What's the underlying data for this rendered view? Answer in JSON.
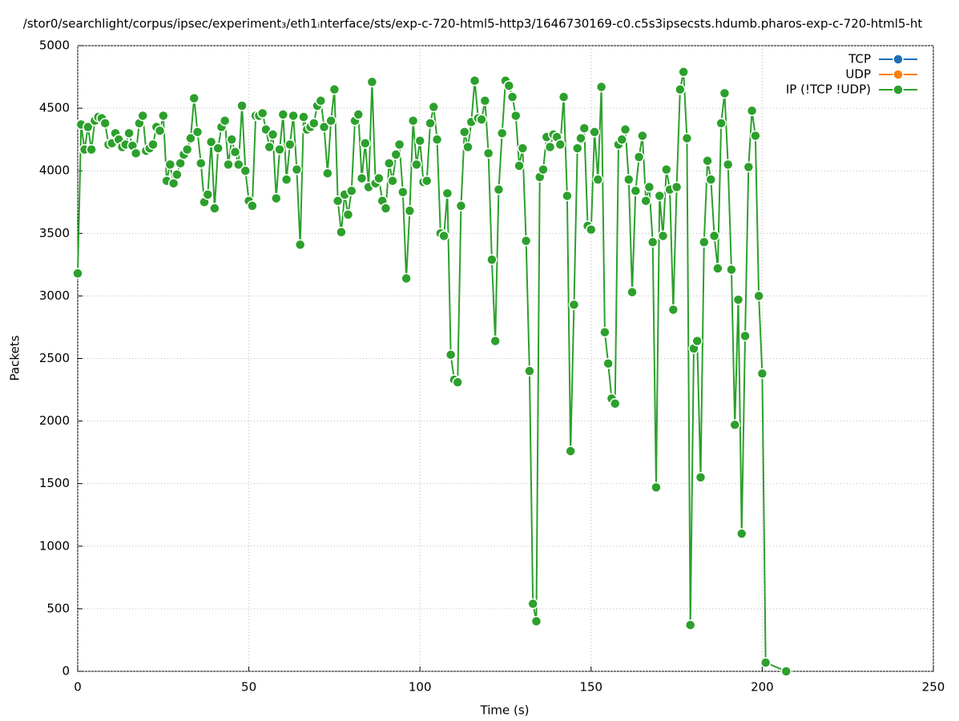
{
  "chart_data": {
    "type": "line",
    "title": "/stor0/searchlight/corpus/ipsec/experiment₃/eth1ᵢnterface/sts/exp-c-720-html5-http3/1646730169-c0.c5s3ipsecsts.hdumb.pharos-exp-c-720-html5-ht",
    "x_label": "Time (s)",
    "y_label": "Packets",
    "xlim": [
      0,
      250
    ],
    "xticks": [
      0,
      50,
      100,
      150,
      200,
      250
    ],
    "ylim": [
      0,
      5000
    ],
    "yticks": [
      0,
      500,
      1000,
      1500,
      2000,
      2500,
      3000,
      3500,
      4000,
      4500,
      5000
    ],
    "grid": true,
    "legend": "top-right",
    "x": [
      0,
      1,
      2,
      3,
      4,
      5,
      6,
      7,
      8,
      9,
      10,
      11,
      12,
      13,
      14,
      15,
      16,
      17,
      18,
      19,
      20,
      21,
      22,
      23,
      24,
      25,
      26,
      27,
      28,
      29,
      30,
      31,
      32,
      33,
      34,
      35,
      36,
      37,
      38,
      39,
      40,
      41,
      42,
      43,
      44,
      45,
      46,
      47,
      48,
      49,
      50,
      51,
      52,
      53,
      54,
      55,
      56,
      57,
      58,
      59,
      60,
      61,
      62,
      63,
      64,
      65,
      66,
      67,
      68,
      69,
      70,
      71,
      72,
      73,
      74,
      75,
      76,
      77,
      78,
      79,
      80,
      81,
      82,
      83,
      84,
      85,
      86,
      87,
      88,
      89,
      90,
      91,
      92,
      93,
      94,
      95,
      96,
      97,
      98,
      99,
      100,
      101,
      102,
      103,
      104,
      105,
      106,
      107,
      108,
      109,
      110,
      111,
      112,
      113,
      114,
      115,
      116,
      117,
      118,
      119,
      120,
      121,
      122,
      123,
      124,
      125,
      126,
      127,
      128,
      129,
      130,
      131,
      132,
      133,
      134,
      135,
      136,
      137,
      138,
      139,
      140,
      141,
      142,
      143,
      144,
      145,
      146,
      147,
      148,
      149,
      150,
      151,
      152,
      153,
      154,
      155,
      156,
      157,
      158,
      159,
      160,
      161,
      162,
      163,
      164,
      165,
      166,
      167,
      168,
      169,
      170,
      171,
      172,
      173,
      174,
      175,
      176,
      177,
      178,
      179,
      180,
      181,
      182,
      183,
      184,
      185,
      186,
      187,
      188,
      189,
      190,
      191,
      192,
      193,
      194,
      195,
      196,
      197,
      198,
      199,
      200,
      201,
      207
    ],
    "series": [
      {
        "name": "TCP",
        "color": "#1f6fb4"
      },
      {
        "name": "UDP",
        "color": "#ff7f0e"
      },
      {
        "name": "IP (!TCP  !UDP)",
        "color": "#2ca02c",
        "values": [
          3180,
          4370,
          4170,
          4350,
          4170,
          4400,
          4430,
          4420,
          4380,
          4210,
          4220,
          4300,
          4250,
          4190,
          4210,
          4300,
          4200,
          4140,
          4380,
          4440,
          4160,
          4180,
          4210,
          4350,
          4320,
          4440,
          3920,
          4050,
          3900,
          3970,
          4060,
          4130,
          4170,
          4260,
          4580,
          4310,
          4060,
          3750,
          3810,
          4230,
          3700,
          4180,
          4350,
          4400,
          4050,
          4250,
          4150,
          4050,
          4520,
          4000,
          3760,
          3720,
          4440,
          4440,
          4460,
          4330,
          4190,
          4290,
          3780,
          4170,
          4450,
          3930,
          4210,
          4440,
          4010,
          3410,
          4430,
          4330,
          4350,
          4380,
          4520,
          4560,
          4350,
          3980,
          4400,
          4650,
          3760,
          3510,
          3810,
          3650,
          3840,
          4400,
          4450,
          3940,
          4220,
          3870,
          4710,
          3900,
          3940,
          3760,
          3700,
          4060,
          3920,
          4130,
          4210,
          3830,
          3140,
          3680,
          4400,
          4050,
          4240,
          3910,
          3920,
          4380,
          4510,
          4250,
          3500,
          3480,
          3820,
          2530,
          2330,
          2310,
          3720,
          4310,
          4190,
          4390,
          4720,
          4420,
          4410,
          4560,
          4140,
          3290,
          2640,
          3850,
          4300,
          4720,
          4680,
          4590,
          4440,
          4040,
          4180,
          3440,
          2400,
          540,
          400,
          3950,
          4010,
          4270,
          4190,
          4290,
          4270,
          4210,
          4590,
          3800,
          1760,
          2930,
          4180,
          4260,
          4340,
          3560,
          3530,
          4310,
          3930,
          4670,
          2710,
          2460,
          2180,
          2140,
          4210,
          4250,
          4330,
          3930,
          3030,
          3840,
          4110,
          4280,
          3760,
          3870,
          3430,
          1470,
          3800,
          3480,
          4010,
          3850,
          2890,
          3870,
          4650,
          4790,
          4260,
          370,
          2580,
          2640,
          1550,
          3430,
          4080,
          3930,
          3480,
          3220,
          4380,
          4620,
          4050,
          3210,
          1970,
          2970,
          1100,
          2680,
          4030,
          4480,
          4280,
          3000,
          2380,
          70,
          0
        ]
      }
    ]
  }
}
